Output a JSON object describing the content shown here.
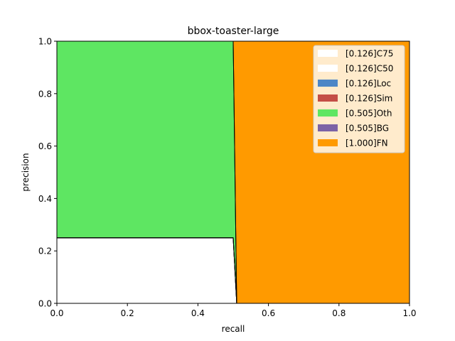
{
  "chart_data": {
    "type": "area",
    "title": "bbox-toaster-large",
    "xlabel": "recall",
    "ylabel": "precision",
    "xlim": [
      0,
      1
    ],
    "ylim": [
      0,
      1
    ],
    "grid": false,
    "legend_position": "top-right",
    "x_ticks": [
      "0.0",
      "0.2",
      "0.4",
      "0.6",
      "0.8",
      "1.0"
    ],
    "y_ticks": [
      "0.0",
      "0.2",
      "0.4",
      "0.6",
      "0.8",
      "1.0"
    ],
    "series": [
      {
        "name": "[0.126]C75",
        "color": "#ffffff",
        "points": [
          [
            0,
            0.25
          ],
          [
            0.5,
            0.25
          ],
          [
            0.51,
            0
          ],
          [
            1,
            0
          ]
        ]
      },
      {
        "name": "[0.126]C50",
        "color": "#ffffff",
        "points": [
          [
            0,
            0.25
          ],
          [
            0.5,
            0.25
          ],
          [
            0.51,
            0
          ],
          [
            1,
            0
          ]
        ]
      },
      {
        "name": "[0.126]Loc",
        "color": "#4c86c6",
        "points": [
          [
            0,
            0.25
          ],
          [
            0.5,
            0.25
          ],
          [
            0.51,
            0
          ],
          [
            1,
            0
          ]
        ]
      },
      {
        "name": "[0.126]Sim",
        "color": "#c44e46",
        "points": [
          [
            0,
            0.25
          ],
          [
            0.5,
            0.25
          ],
          [
            0.51,
            0
          ],
          [
            1,
            0
          ]
        ]
      },
      {
        "name": "[0.505]Oth",
        "color": "#5ee662",
        "points": [
          [
            0,
            1.0
          ],
          [
            0.5,
            1.0
          ],
          [
            0.51,
            0
          ],
          [
            1,
            0
          ]
        ]
      },
      {
        "name": "[0.505]BG",
        "color": "#7c63a6",
        "points": [
          [
            0,
            1.0
          ],
          [
            0.5,
            1.0
          ],
          [
            0.51,
            0
          ],
          [
            1,
            0
          ]
        ]
      },
      {
        "name": "[1.000]FN",
        "color": "#ff9a00",
        "points": [
          [
            0,
            1.0
          ],
          [
            1,
            1.0
          ],
          [
            1,
            0
          ]
        ]
      }
    ]
  }
}
